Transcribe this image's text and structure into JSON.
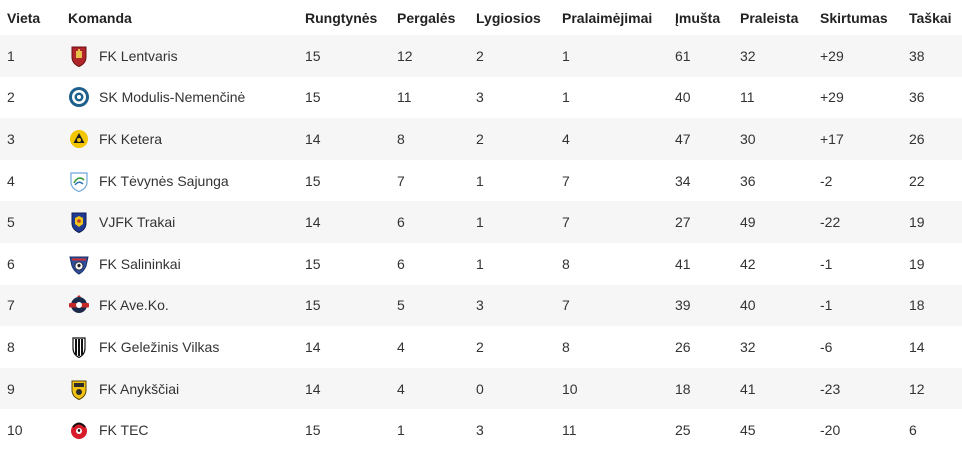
{
  "headers": {
    "rank": "Vieta",
    "team": "Komanda",
    "played": "Rungtynės",
    "won": "Pergalės",
    "drawn": "Lygiosios",
    "lost": "Pralaimėjimai",
    "goals_for": "Įmušta",
    "goals_against": "Praleista",
    "goal_diff": "Skirtumas",
    "points": "Taškai"
  },
  "rows": [
    {
      "rank": "1",
      "team": "FK Lentvaris",
      "played": "15",
      "won": "12",
      "drawn": "2",
      "lost": "1",
      "goals_for": "61",
      "goals_against": "32",
      "goal_diff": "+29",
      "points": "38",
      "crest_icon": "lentvaris-crest-icon"
    },
    {
      "rank": "2",
      "team": "SK Modulis-Nemenčinė",
      "played": "15",
      "won": "11",
      "drawn": "3",
      "lost": "1",
      "goals_for": "40",
      "goals_against": "11",
      "goal_diff": "+29",
      "points": "36",
      "crest_icon": "modulis-crest-icon"
    },
    {
      "rank": "3",
      "team": "FK Ketera",
      "played": "14",
      "won": "8",
      "drawn": "2",
      "lost": "4",
      "goals_for": "47",
      "goals_against": "30",
      "goal_diff": "+17",
      "points": "26",
      "crest_icon": "ketera-crest-icon"
    },
    {
      "rank": "4",
      "team": "FK Tėvynės Sajunga",
      "played": "15",
      "won": "7",
      "drawn": "1",
      "lost": "7",
      "goals_for": "34",
      "goals_against": "36",
      "goal_diff": "-2",
      "points": "22",
      "crest_icon": "tevynes-sajunga-crest-icon"
    },
    {
      "rank": "5",
      "team": "VJFK Trakai",
      "played": "14",
      "won": "6",
      "drawn": "1",
      "lost": "7",
      "goals_for": "27",
      "goals_against": "49",
      "goal_diff": "-22",
      "points": "19",
      "crest_icon": "trakai-crest-icon"
    },
    {
      "rank": "6",
      "team": "FK Salininkai",
      "played": "15",
      "won": "6",
      "drawn": "1",
      "lost": "8",
      "goals_for": "41",
      "goals_against": "42",
      "goal_diff": "-1",
      "points": "19",
      "crest_icon": "salininkai-crest-icon"
    },
    {
      "rank": "7",
      "team": "FK Ave.Ko.",
      "played": "15",
      "won": "5",
      "drawn": "3",
      "lost": "7",
      "goals_for": "39",
      "goals_against": "40",
      "goal_diff": "-1",
      "points": "18",
      "crest_icon": "aveko-crest-icon"
    },
    {
      "rank": "8",
      "team": "FK Geležinis Vilkas",
      "played": "14",
      "won": "4",
      "drawn": "2",
      "lost": "8",
      "goals_for": "26",
      "goals_against": "32",
      "goal_diff": "-6",
      "points": "14",
      "crest_icon": "gelezinis-vilkas-crest-icon"
    },
    {
      "rank": "9",
      "team": "FK Anykščiai",
      "played": "14",
      "won": "4",
      "drawn": "0",
      "lost": "10",
      "goals_for": "18",
      "goals_against": "41",
      "goal_diff": "-23",
      "points": "12",
      "crest_icon": "anyksciai-crest-icon"
    },
    {
      "rank": "10",
      "team": "FK TEC",
      "played": "15",
      "won": "1",
      "drawn": "3",
      "lost": "11",
      "goals_for": "25",
      "goals_against": "45",
      "goal_diff": "-20",
      "points": "6",
      "crest_icon": "tec-crest-icon"
    }
  ],
  "colors": {
    "row_alt": "#f6f6f6",
    "text": "#333333"
  }
}
